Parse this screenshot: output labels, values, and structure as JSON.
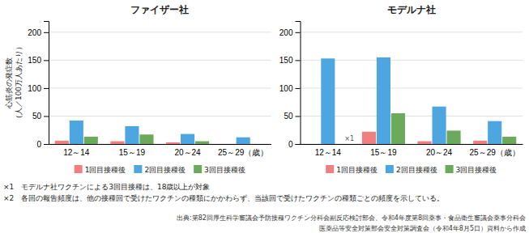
{
  "chart_data": [
    {
      "type": "bar",
      "title": "ファイザー社",
      "categories": [
        "12～14",
        "15～19",
        "20～24",
        "25～29（歳）"
      ],
      "series": [
        {
          "name": "1回目接種後",
          "color": "#f08080",
          "values": [
            6,
            5,
            3,
            0
          ]
        },
        {
          "name": "2回目接種後",
          "color": "#4da6e0",
          "values": [
            42,
            32,
            18,
            12
          ]
        },
        {
          "name": "3回目接種後",
          "color": "#6aaa5a",
          "values": [
            13,
            17,
            5,
            0
          ]
        }
      ],
      "ylabel": [
        "心筋炎の発症数",
        "（人／100万人あたり）"
      ],
      "ylim": [
        0,
        220
      ],
      "yticks": [
        0,
        50,
        100,
        150,
        200
      ],
      "grid": true,
      "legend": "bottom"
    },
    {
      "type": "bar",
      "title": "モデルナ社",
      "categories": [
        "12～14",
        "15～19",
        "20～24",
        "25～29（歳）"
      ],
      "series": [
        {
          "name": "1回目接種後",
          "color": "#f08080",
          "values": [
            0,
            22,
            5,
            6
          ]
        },
        {
          "name": "2回目接種後",
          "color": "#4da6e0",
          "values": [
            153,
            155,
            67,
            41
          ]
        },
        {
          "name": "3回目接種後",
          "color": "#6aaa5a",
          "values": [
            0,
            55,
            24,
            13
          ]
        }
      ],
      "annotations": [
        {
          "text": "×1",
          "category": "12～14",
          "y": 3
        }
      ],
      "ylim": [
        0,
        220
      ],
      "yticks": [
        0,
        50,
        100,
        150,
        200
      ],
      "grid": true,
      "legend": "bottom"
    }
  ],
  "footnotes": [
    "×1　モデルナ社ワクチンによる3回目接種は、18歳以上が対象",
    "×2　各回の報告頻度は、他の接種回で受けたワクチンの種類にかかわらず、当該回で受けたワクチンの種類ごとの頻度を示している。"
  ],
  "source": [
    "出典:第82回厚生科学審議会予防接種ワクチン分科会副反応検討部会、令和4年度第8回薬事・食品衛生審議会薬事分科会",
    "医薬品等安全対策部会安全対策調査会（令和4年8月5日）資料から作成"
  ]
}
